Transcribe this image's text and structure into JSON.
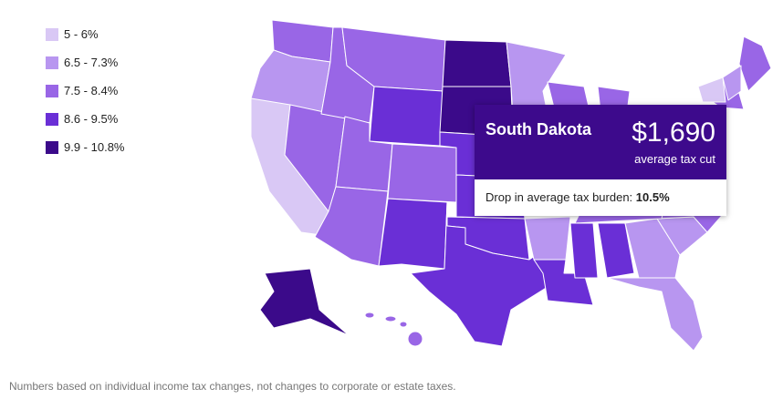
{
  "legend": {
    "items": [
      {
        "label": "5 - 6%",
        "color": "#d9c8f5"
      },
      {
        "label": "6.5 - 7.3%",
        "color": "#b896f0"
      },
      {
        "label": "7.5 - 8.4%",
        "color": "#9966e6"
      },
      {
        "label": "8.6 - 9.5%",
        "color": "#6a2fd6"
      },
      {
        "label": "9.9 - 10.8%",
        "color": "#3b0a8a"
      }
    ]
  },
  "tooltip": {
    "title": "South Dakota",
    "value": "$1,690",
    "value_caption": "average tax cut",
    "detail_label": "Drop in average tax burden:",
    "detail_value": "10.5%"
  },
  "footnote": "Numbers based on individual income tax changes, not changes to corporate or estate taxes."
}
